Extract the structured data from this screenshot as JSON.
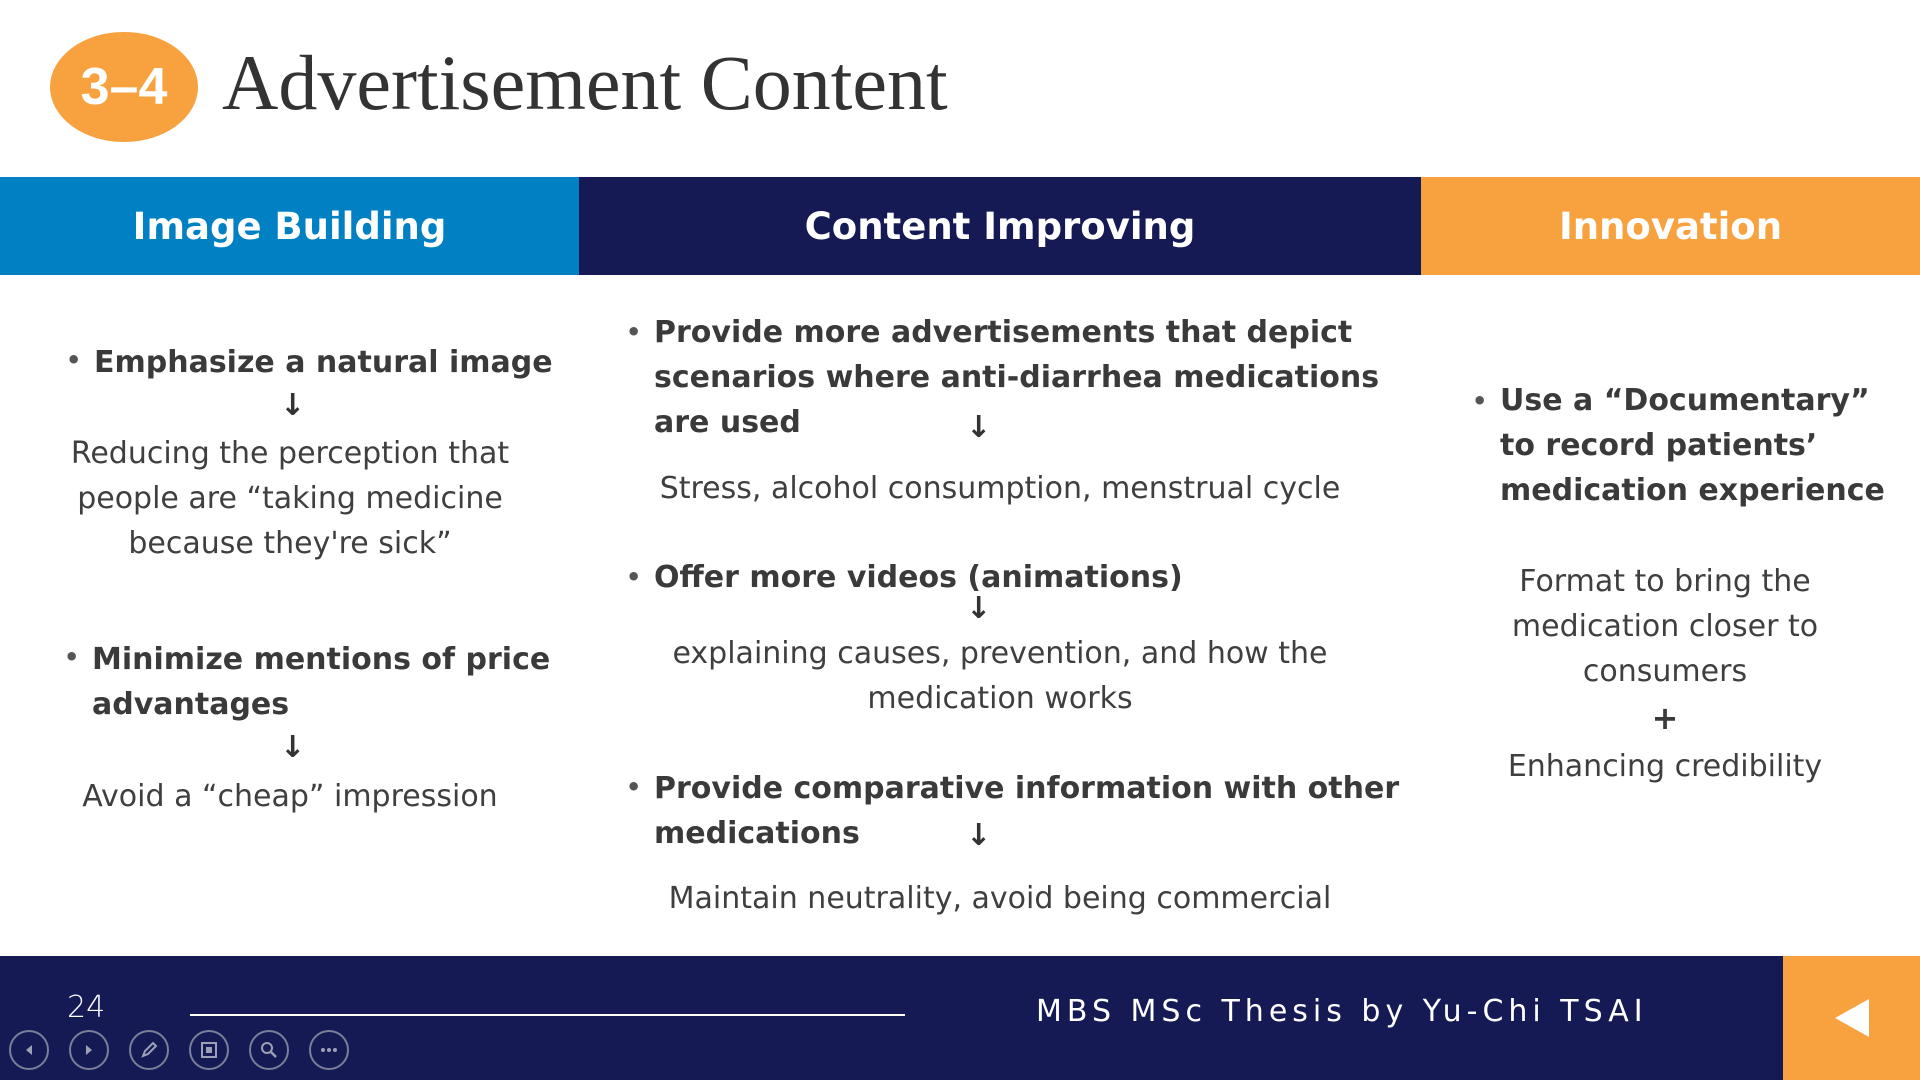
{
  "header": {
    "badge": "3–4",
    "title": "Advertisement Content"
  },
  "columns": {
    "image_building": {
      "title": "Image Building",
      "item1_title": "Emphasize a natural image",
      "item1_desc": [
        "Reducing the perception that",
        "people are “taking medicine",
        "because they're sick”"
      ],
      "item2_title": [
        "Minimize mentions of price",
        "advantages"
      ],
      "item2_desc": "Avoid a “cheap” impression"
    },
    "content_improving": {
      "title": "Content Improving",
      "item1_title": [
        "Provide more advertisements that depict",
        "scenarios where anti-diarrhea medications",
        "are used"
      ],
      "item1_desc": "Stress, alcohol consumption, menstrual cycle",
      "item2_title": "Offer more videos (animations)",
      "item2_desc": [
        "explaining causes, prevention, and how the",
        "medication works"
      ],
      "item3_title": [
        "Provide comparative information with other",
        "medications"
      ],
      "item3_desc": "Maintain neutrality, avoid being commercial"
    },
    "innovation": {
      "title": "Innovation",
      "item1_title": [
        "Use a “Documentary”",
        "to record patients’",
        "medication experience"
      ],
      "item1_desc": [
        "Format to bring the",
        "medication closer to",
        "consumers"
      ],
      "plus": "+",
      "item2_desc": "Enhancing credibility"
    }
  },
  "symbols": {
    "arrow": "↓",
    "bullet": "•"
  },
  "footer": {
    "page_number": "24",
    "credit": "MBS MSc Thesis by Yu-Chi TSAI"
  },
  "controls": [
    "previous-icon",
    "next-icon",
    "pen-icon",
    "slides-icon",
    "zoom-icon",
    "more-icon"
  ],
  "colors": {
    "blue": "#0181c3",
    "navy": "#151a55",
    "orange": "#f8a13f"
  }
}
